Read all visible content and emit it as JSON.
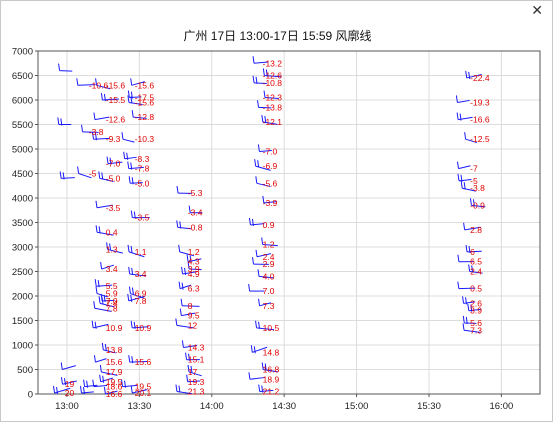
{
  "window": {
    "title": "广州 17日 13:00-17日 15:59 风廓线",
    "close_glyph": "✕"
  },
  "chart_data": {
    "type": "scatter",
    "title": "广州 17日 13:00-17日 15:59 风廓线",
    "xlabel": "",
    "ylabel": "",
    "x_ticks": [
      "13:00",
      "13:30",
      "14:00",
      "14:30",
      "15:00",
      "15:30",
      "16:00"
    ],
    "x_range": [
      "12:48",
      "16:16"
    ],
    "y_ticks": [
      0,
      500,
      1000,
      1500,
      2000,
      2500,
      3000,
      3500,
      4000,
      4500,
      5000,
      5500,
      6000,
      6500,
      7000
    ],
    "ylim": [
      0,
      7000
    ],
    "grid": true,
    "legend": "none",
    "barb_color": "#1a1aff",
    "label_color": "#e00000",
    "series": [
      {
        "time": "12:57",
        "points": [
          {
            "h": 6600
          },
          {
            "h": 5500
          },
          {
            "h": 4400
          },
          {
            "h": 500
          },
          {
            "h": 200,
            "label": "19"
          },
          {
            "h": 20,
            "label": "20"
          }
        ]
      },
      {
        "time": "13:07",
        "points": [
          {
            "h": 6300,
            "label": "-10.6"
          },
          {
            "h": 5350,
            "label": "-3.8"
          },
          {
            "h": 4500,
            "label": "-5"
          },
          {
            "h": 150
          },
          {
            "h": 20
          }
        ]
      },
      {
        "time": "13:14",
        "points": [
          {
            "h": 6300,
            "label": "-15.6"
          },
          {
            "h": 6000,
            "label": "-15.5"
          },
          {
            "h": 5600,
            "label": "-12.6"
          },
          {
            "h": 5200,
            "label": "-9.3"
          },
          {
            "h": 4700,
            "label": "-7.0"
          },
          {
            "h": 4400,
            "label": "-5.0"
          },
          {
            "h": 3800,
            "label": "-3.5"
          },
          {
            "h": 3300,
            "label": "0.4"
          },
          {
            "h": 2950,
            "label": "1.3"
          },
          {
            "h": 2550,
            "label": "3.4"
          },
          {
            "h": 2200,
            "label": "5.5"
          },
          {
            "h": 2050,
            "label": "5.9"
          },
          {
            "h": 1900,
            "label": "7.0"
          },
          {
            "h": 1850,
            "label": "7.4"
          },
          {
            "h": 1750,
            "label": "7.8"
          },
          {
            "h": 1350,
            "label": "10.9"
          },
          {
            "h": 900,
            "label": "13.8"
          },
          {
            "h": 650,
            "label": "15.6"
          },
          {
            "h": 450,
            "label": "17.9"
          },
          {
            "h": 250,
            "label": "19.5"
          },
          {
            "h": 150,
            "label": "18.6"
          },
          {
            "h": 0,
            "label": "16.6"
          }
        ]
      },
      {
        "time": "13:26",
        "points": [
          {
            "h": 6300,
            "label": "-15.6"
          },
          {
            "h": 6050,
            "label": "-17.5"
          },
          {
            "h": 5950,
            "label": "-15.6"
          },
          {
            "h": 5650,
            "label": "-12.8"
          },
          {
            "h": 5200,
            "label": "-10.3"
          },
          {
            "h": 4800,
            "label": "-8.3"
          },
          {
            "h": 4600,
            "label": "-7.8"
          },
          {
            "h": 4300,
            "label": "-5.0"
          },
          {
            "h": 3600,
            "label": "-3.5"
          },
          {
            "h": 2900,
            "label": "1.1"
          },
          {
            "h": 2450,
            "label": "3.4"
          },
          {
            "h": 2050,
            "label": "6.9"
          },
          {
            "h": 1900,
            "label": "7.8"
          },
          {
            "h": 1350,
            "label": "10.9"
          },
          {
            "h": 650,
            "label": "15.6"
          },
          {
            "h": 150,
            "label": "19.5"
          },
          {
            "h": 20,
            "label": "20.1"
          }
        ]
      },
      {
        "time": "13:48",
        "points": [
          {
            "h": 4100,
            "label": "-5.3"
          },
          {
            "h": 3700,
            "label": "-3.4"
          },
          {
            "h": 3400,
            "label": "-0.8"
          },
          {
            "h": 2900,
            "label": "1.2"
          },
          {
            "h": 2700,
            "label": "4.3"
          },
          {
            "h": 2550,
            "label": "3.9"
          },
          {
            "h": 2450,
            "label": "4.9"
          },
          {
            "h": 2150,
            "label": "6.3"
          },
          {
            "h": 1800,
            "label": "8"
          },
          {
            "h": 1600,
            "label": "9.5"
          },
          {
            "h": 1400,
            "label": "12"
          },
          {
            "h": 950,
            "label": "14.3"
          },
          {
            "h": 700,
            "label": "15.1"
          },
          {
            "h": 450,
            "label": "17"
          },
          {
            "h": 250,
            "label": "19.3"
          },
          {
            "h": 50,
            "label": "21.3"
          }
        ]
      },
      {
        "time": "14:19",
        "points": [
          {
            "h": 6750,
            "label": "-13.2"
          },
          {
            "h": 6500,
            "label": "-12.6"
          },
          {
            "h": 6350,
            "label": "-10.8"
          },
          {
            "h": 6050,
            "label": "-12.3"
          },
          {
            "h": 5850,
            "label": "-13.8"
          },
          {
            "h": 5550,
            "label": "-12.1"
          },
          {
            "h": 4950,
            "label": "-7.0"
          },
          {
            "h": 4650,
            "label": "-6.9"
          },
          {
            "h": 4300,
            "label": "-5.6"
          },
          {
            "h": 3900,
            "label": "-3.9"
          },
          {
            "h": 3450,
            "label": "0.9"
          },
          {
            "h": 3050,
            "label": "1.2"
          },
          {
            "h": 2800,
            "label": "2.4"
          },
          {
            "h": 2650,
            "label": "2.9"
          },
          {
            "h": 2400,
            "label": "4.0"
          },
          {
            "h": 2100,
            "label": "7.0"
          },
          {
            "h": 1800,
            "label": "7.3"
          },
          {
            "h": 1350,
            "label": "10.5"
          },
          {
            "h": 850,
            "label": "14.8"
          },
          {
            "h": 500,
            "label": "16.8"
          },
          {
            "h": 300,
            "label": "18.9"
          },
          {
            "h": 50,
            "label": "21.2"
          }
        ]
      },
      {
        "time": "15:45",
        "points": [
          {
            "h": 6450,
            "label": "-22.4"
          },
          {
            "h": 5950,
            "label": "-19.3"
          },
          {
            "h": 5600,
            "label": "-16.6"
          },
          {
            "h": 5200,
            "label": "-12.5"
          },
          {
            "h": 4600,
            "label": "-7"
          },
          {
            "h": 4350,
            "label": "-5"
          },
          {
            "h": 4200,
            "label": "-3.8"
          },
          {
            "h": 3850,
            "label": "-0.9"
          },
          {
            "h": 3350,
            "label": "2.8"
          },
          {
            "h": 2900,
            "label": "6"
          },
          {
            "h": 2700,
            "label": "6.5"
          },
          {
            "h": 2500,
            "label": "2.4"
          },
          {
            "h": 2150,
            "label": "0.5"
          },
          {
            "h": 1850,
            "label": "2.6"
          },
          {
            "h": 1700,
            "label": "3.9"
          },
          {
            "h": 1450,
            "label": "5.6"
          },
          {
            "h": 1300,
            "label": "7.3"
          }
        ]
      }
    ]
  }
}
